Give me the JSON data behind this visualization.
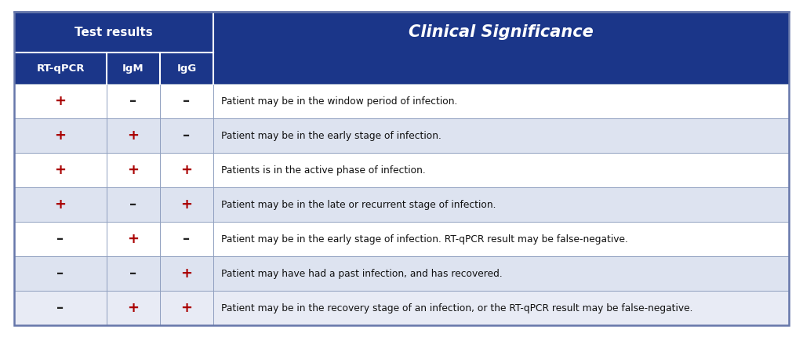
{
  "header_bg_color": "#1b3689",
  "header_text_color": "#ffffff",
  "row_colors": [
    "#ffffff",
    "#dde3f0",
    "#ffffff",
    "#dde3f0",
    "#ffffff",
    "#dde3f0",
    "#e8ebf5"
  ],
  "border_color": "#8899bb",
  "outer_border_color": "#6677aa",
  "col1_header": "Test results",
  "col2_header": "Clinical Significance",
  "sub_headers": [
    "RT-qPCR",
    "IgM",
    "IgG"
  ],
  "plus_color": "#aa0000",
  "minus_color": "#222222",
  "text_color": "#111111",
  "rows": [
    {
      "rt": "+",
      "igm": "–",
      "igg": "–",
      "text": "Patient may be in the window period of infection."
    },
    {
      "rt": "+",
      "igm": "+",
      "igg": "–",
      "text": "Patient may be in the early stage of infection."
    },
    {
      "rt": "+",
      "igm": "+",
      "igg": "+",
      "text": "Patients is in the active phase of infection."
    },
    {
      "rt": "+",
      "igm": "–",
      "igg": "+",
      "text": "Patient may be in the late or recurrent stage of infection."
    },
    {
      "rt": "–",
      "igm": "+",
      "igg": "–",
      "text": "Patient may be in the early stage of infection. RT-qPCR result may be false-negative."
    },
    {
      "rt": "–",
      "igm": "–",
      "igg": "+",
      "text": "Patient may have had a past infection, and has recovered."
    },
    {
      "rt": "–",
      "igm": "+",
      "igg": "+",
      "text": "Patient may be in the recovery stage of an infection, or the RT-qPCR result may be false-negative."
    }
  ],
  "figsize": [
    10.24,
    4.3
  ],
  "dpi": 100
}
